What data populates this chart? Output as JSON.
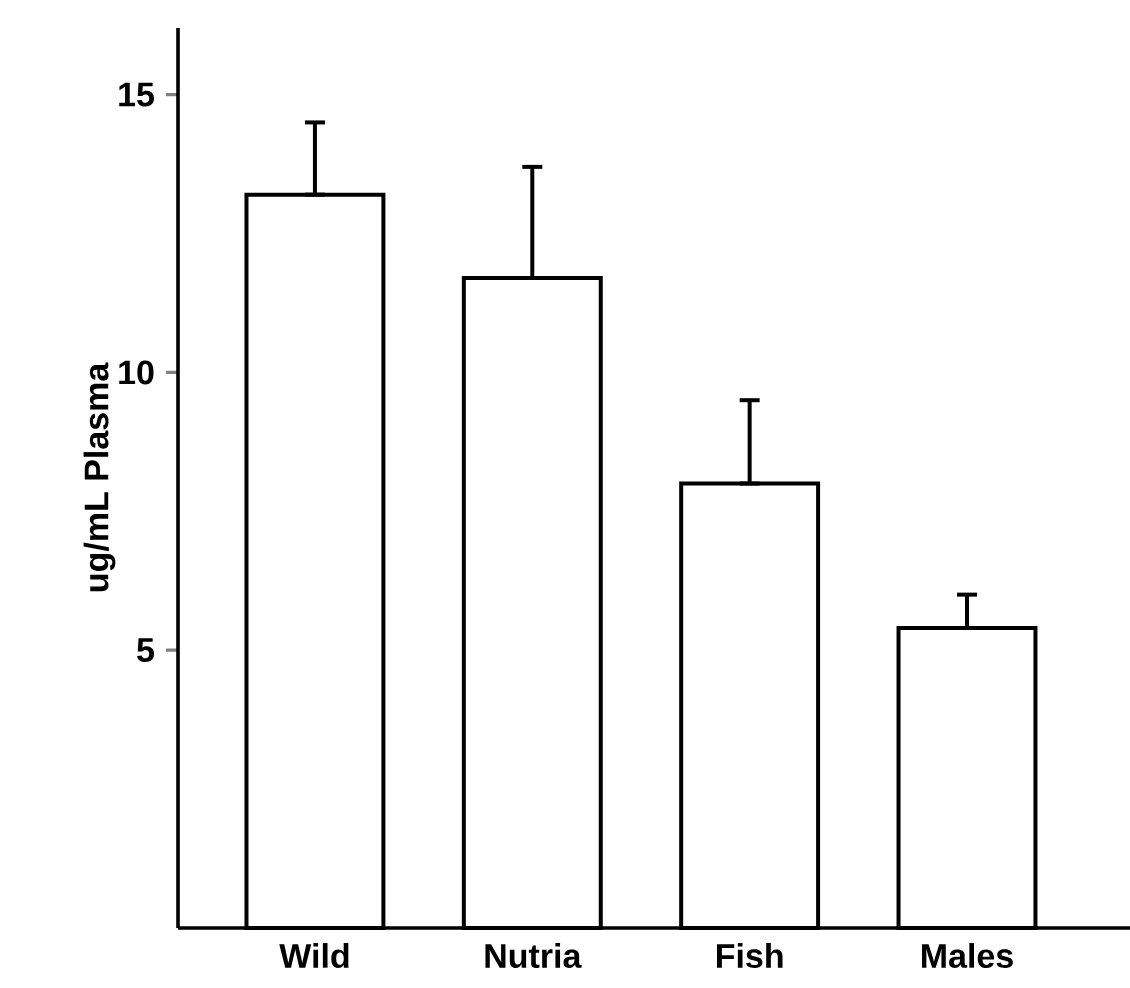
{
  "chart_data": {
    "type": "bar",
    "ylabel": "ug/mL  Plasma",
    "categories": [
      "Wild",
      "Nutria",
      "Fish",
      "Males"
    ],
    "values": [
      13.2,
      11.7,
      8.0,
      5.4
    ],
    "errors": [
      [
        13.2,
        14.5
      ],
      [
        11.7,
        13.7
      ],
      [
        8.0,
        9.5
      ],
      [
        5.4,
        6.0
      ]
    ],
    "color": "#ffffff",
    "ylim": [
      0,
      16.2
    ],
    "yticks": [
      5,
      10,
      15
    ],
    "grid": false
  }
}
